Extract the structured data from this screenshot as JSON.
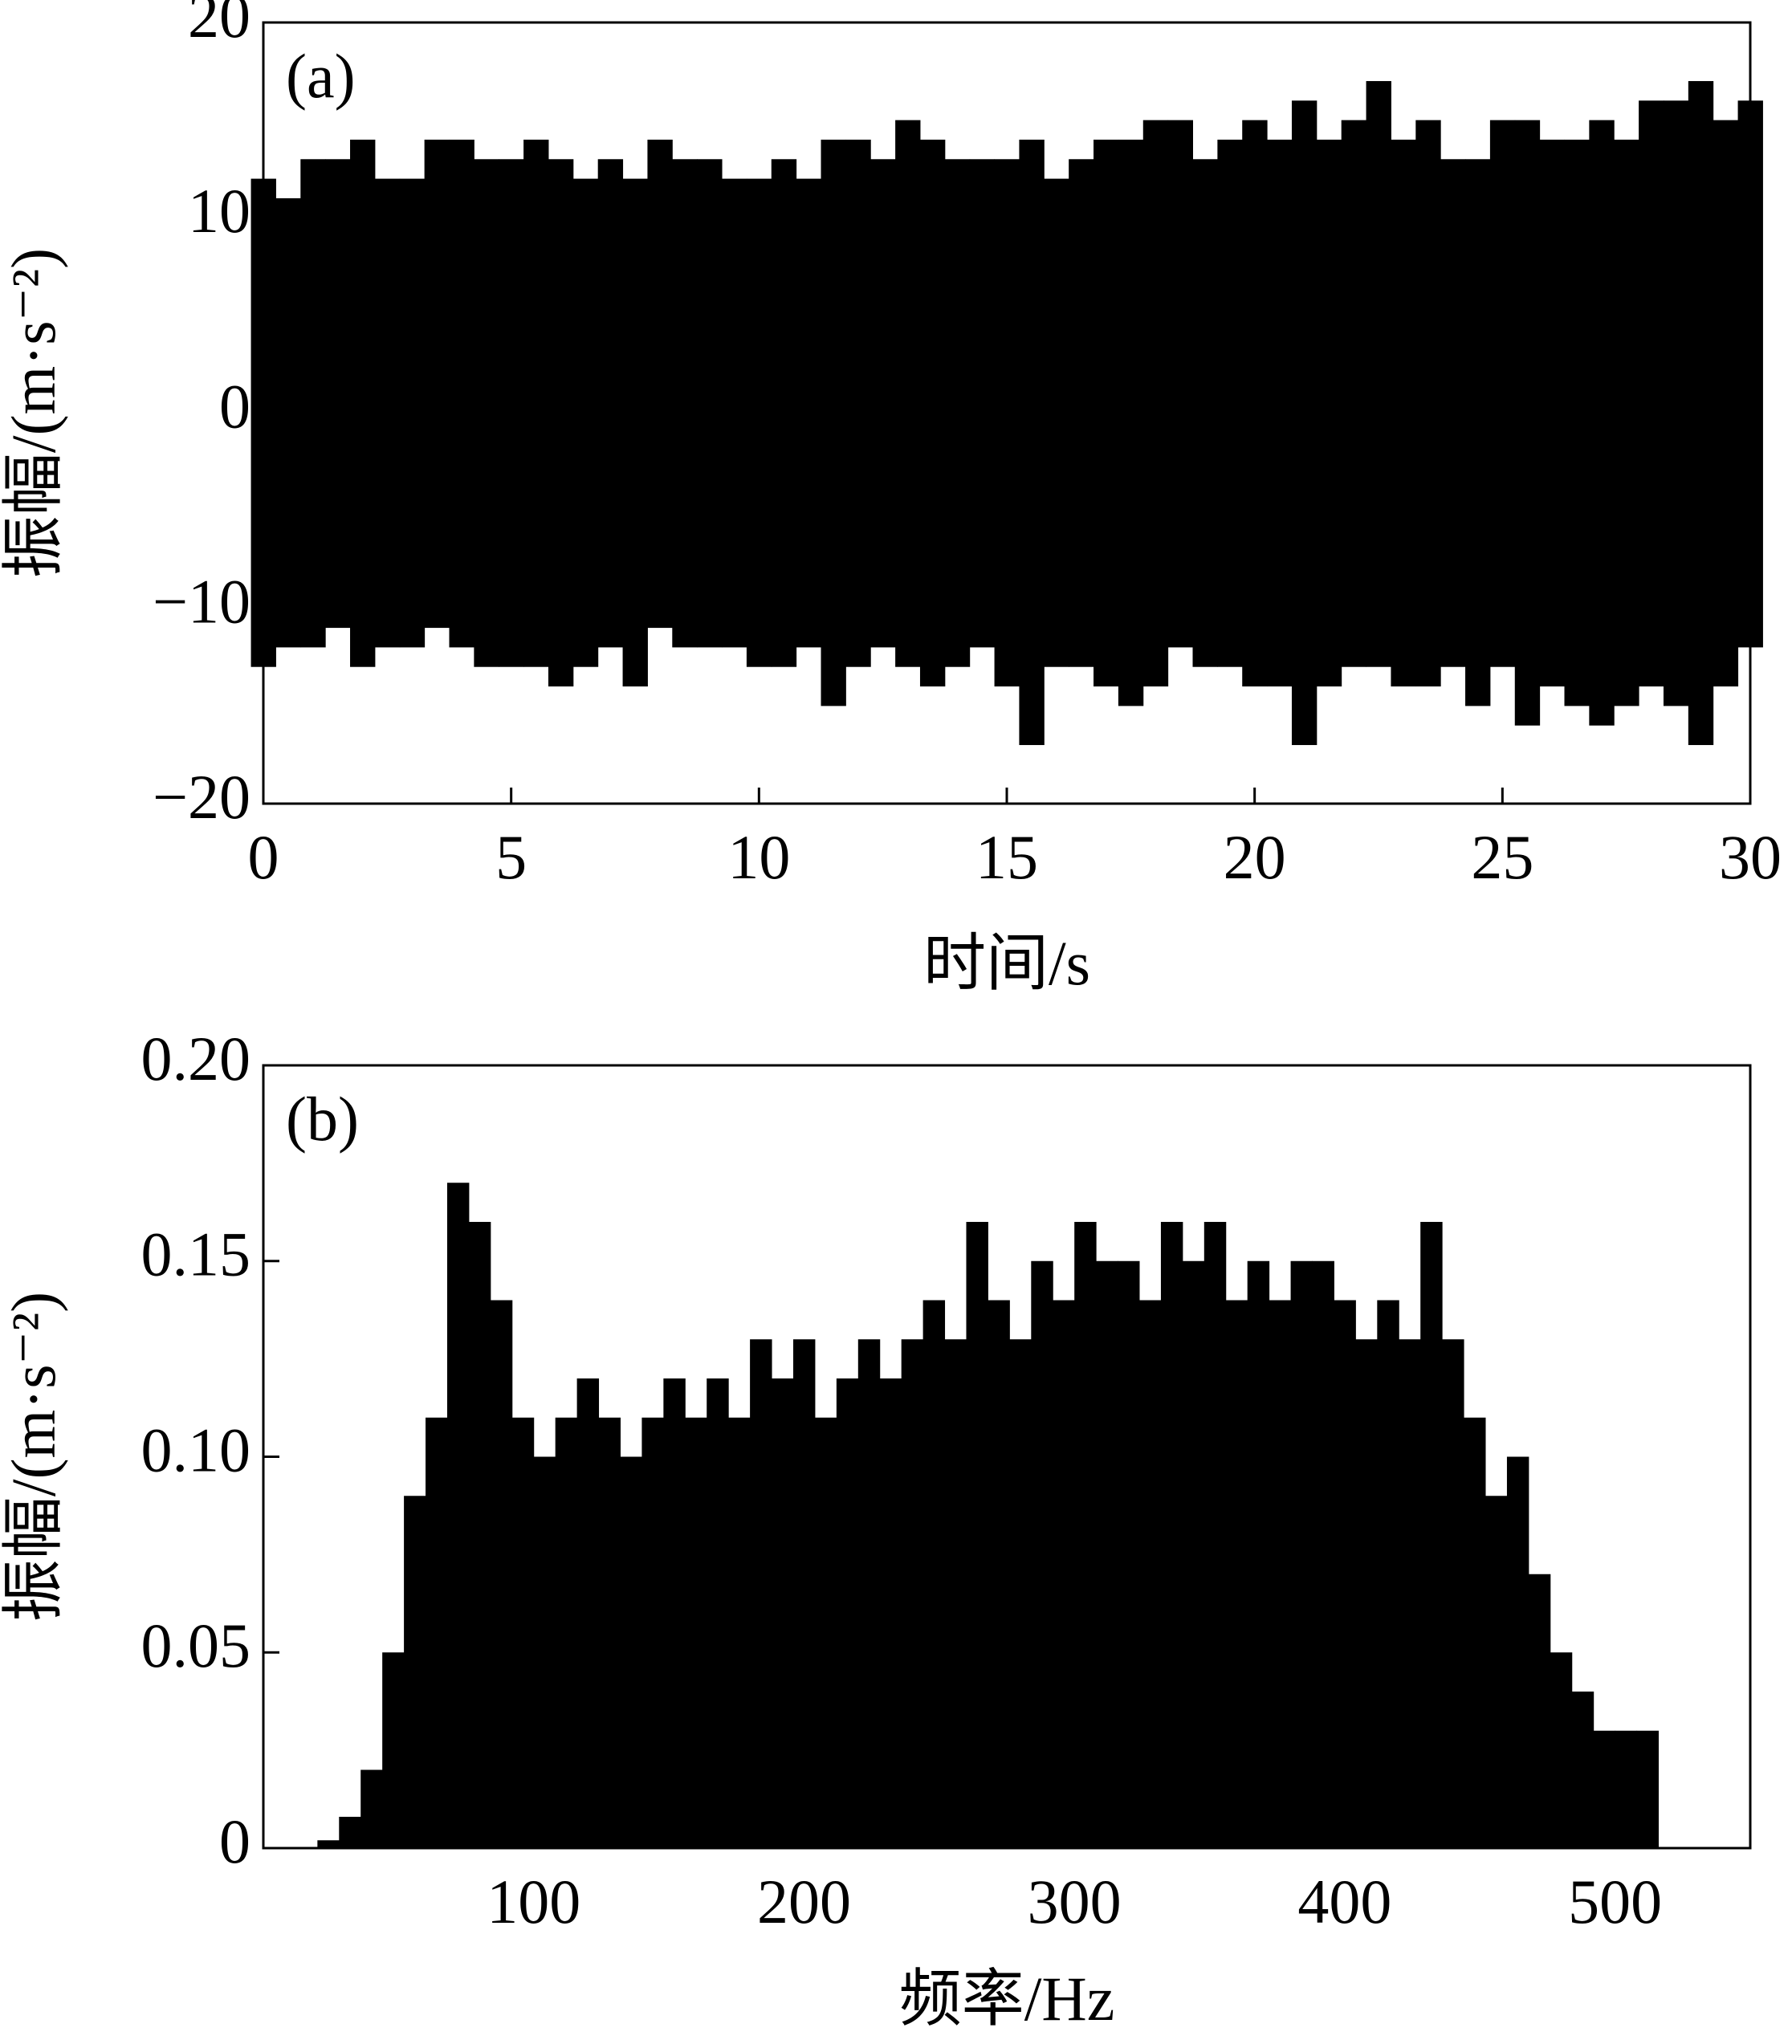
{
  "chart_data": [
    {
      "type": "range",
      "panel_label": "(a)",
      "xlabel": "时间/s",
      "ylabel": "振幅/(m·s⁻²)",
      "color": "#000000",
      "xlim": [
        0,
        30
      ],
      "xticks": [
        0,
        5,
        10,
        15,
        20,
        25,
        30
      ],
      "ylim": [
        -20,
        20
      ],
      "yticks": [
        {
          "value": -20,
          "label": "−20"
        },
        {
          "value": -10,
          "label": "−10"
        },
        0,
        10,
        20
      ],
      "x": [
        0,
        0.5,
        1,
        1.5,
        2,
        2.5,
        3,
        3.5,
        4,
        4.5,
        5,
        5.5,
        6,
        6.5,
        7,
        7.5,
        8,
        8.5,
        9,
        9.5,
        10,
        10.5,
        11,
        11.5,
        12,
        12.5,
        13,
        13.5,
        14,
        14.5,
        15,
        15.5,
        16,
        16.5,
        17,
        17.5,
        18,
        18.5,
        19,
        19.5,
        20,
        20.5,
        21,
        21.5,
        22,
        22.5,
        23,
        23.5,
        24,
        24.5,
        25,
        25.5,
        26,
        26.5,
        27,
        27.5,
        28,
        28.5,
        29,
        29.5,
        30
      ],
      "upper": [
        12,
        11,
        13,
        13,
        14,
        12,
        12,
        14,
        14,
        13,
        13,
        14,
        13,
        12,
        13,
        12,
        14,
        13,
        13,
        12,
        12,
        13,
        12,
        14,
        14,
        13,
        15,
        14,
        13,
        13,
        13,
        14,
        12,
        13,
        14,
        14,
        15,
        15,
        13,
        14,
        15,
        14,
        16,
        14,
        15,
        17,
        14,
        15,
        13,
        13,
        15,
        15,
        14,
        14,
        15,
        14,
        16,
        16,
        17,
        15,
        16
      ],
      "lower": [
        -13,
        -12,
        -12,
        -11,
        -13,
        -12,
        -12,
        -11,
        -12,
        -13,
        -13,
        -13,
        -14,
        -13,
        -12,
        -14,
        -11,
        -12,
        -12,
        -12,
        -13,
        -13,
        -12,
        -15,
        -13,
        -12,
        -13,
        -14,
        -13,
        -12,
        -14,
        -17,
        -13,
        -13,
        -14,
        -15,
        -14,
        -12,
        -13,
        -13,
        -14,
        -14,
        -17,
        -14,
        -13,
        -13,
        -14,
        -14,
        -13,
        -15,
        -13,
        -16,
        -14,
        -15,
        -16,
        -15,
        -14,
        -15,
        -17,
        -14,
        -12
      ]
    },
    {
      "type": "bar",
      "panel_label": "(b)",
      "xlabel": "频率/Hz",
      "ylabel": "振幅/(m·s⁻²)",
      "color": "#000000",
      "xlim": [
        0,
        550
      ],
      "xticks": [
        100,
        200,
        300,
        400,
        500
      ],
      "ylim": [
        0,
        0.2
      ],
      "yticks": [
        0,
        0.05,
        {
          "value": 0.1,
          "label": "0.10"
        },
        0.15,
        {
          "value": 0.2,
          "label": "0.20"
        }
      ],
      "x": [
        0,
        8,
        16,
        24,
        32,
        40,
        48,
        56,
        64,
        72,
        80,
        88,
        96,
        104,
        112,
        120,
        128,
        136,
        144,
        152,
        160,
        168,
        176,
        184,
        192,
        200,
        208,
        216,
        224,
        232,
        240,
        248,
        256,
        264,
        272,
        280,
        288,
        296,
        304,
        312,
        320,
        328,
        336,
        344,
        352,
        360,
        368,
        376,
        384,
        392,
        400,
        408,
        416,
        424,
        432,
        440,
        448,
        456,
        464,
        472,
        480,
        488,
        496,
        504,
        512
      ],
      "values": [
        0,
        0,
        0,
        0.002,
        0.008,
        0.02,
        0.05,
        0.09,
        0.11,
        0.17,
        0.16,
        0.14,
        0.11,
        0.1,
        0.11,
        0.12,
        0.11,
        0.1,
        0.11,
        0.12,
        0.11,
        0.12,
        0.11,
        0.13,
        0.12,
        0.13,
        0.11,
        0.12,
        0.13,
        0.12,
        0.13,
        0.14,
        0.13,
        0.16,
        0.14,
        0.13,
        0.15,
        0.14,
        0.16,
        0.15,
        0.15,
        0.14,
        0.16,
        0.15,
        0.16,
        0.14,
        0.15,
        0.14,
        0.15,
        0.15,
        0.14,
        0.13,
        0.14,
        0.13,
        0.16,
        0.13,
        0.11,
        0.09,
        0.1,
        0.07,
        0.05,
        0.04,
        0.03,
        0.03,
        0.03
      ]
    }
  ]
}
